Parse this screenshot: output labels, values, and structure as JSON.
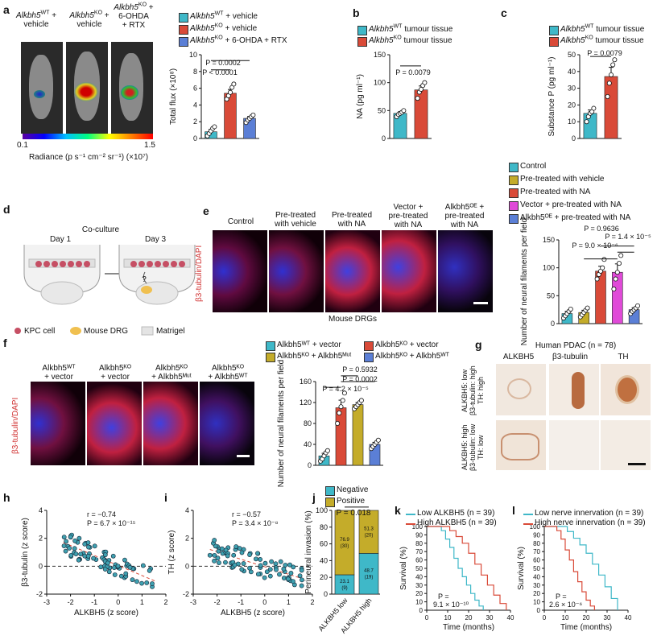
{
  "colors": {
    "wt": "#3fb8c8",
    "ko": "#d94a38",
    "rtx": "#5b7fd6",
    "olive": "#c4ac2a",
    "magenta": "#e04ad8",
    "neg": "#3fb8c8",
    "pos": "#c4ac2a",
    "low": "#3fb8c8",
    "high": "#d94a38"
  },
  "panel_a": {
    "label": "a",
    "img_labels": [
      {
        "gene": "Alkbh5",
        "sup": "WT",
        "text": " +",
        "line2": "vehicle"
      },
      {
        "gene": "Alkbh5",
        "sup": "KO",
        "text": " +",
        "line2": "vehicle"
      },
      {
        "gene": "Alkbh5",
        "sup": "KO",
        "text": " +",
        "line2": "6-OHDA",
        "line3": "+ RTX"
      }
    ],
    "colorbar_min": "0.1",
    "colorbar_max": "1.5",
    "colorbar_title": "Radiance (p s⁻¹ cm⁻² sr⁻¹) (×10⁷)",
    "legend": [
      {
        "gene": "Alkbh5",
        "sup": "WT",
        "text": " + vehicle"
      },
      {
        "gene": "Alkbh5",
        "sup": "KO",
        "text": " + vehicle"
      },
      {
        "gene": "Alkbh5",
        "sup": "KO",
        "text": " + 6-OHDA + RTX"
      }
    ],
    "p1": "P = 0.0002",
    "p2": "P < 0.0001"
  },
  "panel_b": {
    "label": "b",
    "legend": [
      {
        "gene": "Alkbh5",
        "sup": "WT",
        "text": " tumour tissue"
      },
      {
        "gene": "Alkbh5",
        "sup": "KO",
        "text": " tumour tissue"
      }
    ],
    "p": "P = 0.0079"
  },
  "panel_c": {
    "label": "c",
    "legend": [
      {
        "gene": "Alkbh5",
        "sup": "WT",
        "text": " tumour tissue"
      },
      {
        "gene": "Alkbh5",
        "sup": "KO",
        "text": " tumour tissue"
      }
    ],
    "p": "P = 0.0079"
  },
  "panel_d": {
    "label": "d",
    "coculture": "Co-culture",
    "day1": "Day 1",
    "day3": "Day 3",
    "q": "?",
    "legend": [
      "KPC cell",
      "Mouse DRG",
      "Matrigel"
    ]
  },
  "panel_e": {
    "label": "e",
    "cols": [
      "Control",
      "Pre-treated\nwith vehicle",
      "Pre-treated\nwith NA",
      "Vector +\npre-treated\nwith NA",
      "Alkbh5ᴼᴱ +\npre-treated\nwith NA"
    ],
    "ylabel": "β3-tubulin/DAPI",
    "xlabel": "Mouse DRGs",
    "legend": [
      "Control",
      "Pre-treated with vehicle",
      "Pre-treated with NA",
      "Vector + pre-treated with NA",
      "Alkbh5ᴼᴱ + pre-treated with NA"
    ],
    "p1": "P = 0.9636",
    "p2": "P = 1.4 × 10⁻⁵",
    "p3": "P = 9.0 × 10⁻⁶"
  },
  "panel_f": {
    "label": "f",
    "cols": [
      "Alkbh5ᵂᵀ\n+ vector",
      "Alkbh5ᴷᴼ\n+ vector",
      "Alkbh5ᴷᴼ\n+ Alkbh5ᴹᵘᵗ",
      "Alkbh5ᴷᴼ\n+ Alkbh5ᵂᵀ"
    ],
    "ylabel": "β3-tubulin/DAPI",
    "legend": [
      "Alkbh5ᵂᵀ + vector",
      "Alkbh5ᴷᴼ + vector",
      "Alkbh5ᴷᴼ + Alkbh5ᴹᵘᵗ",
      "Alkbh5ᴷᴼ + Alkbh5ᵂᵀ"
    ],
    "p1": "P = 0.5932",
    "p2": "P = 0.0002",
    "p3": "P = 4.2 × 10⁻⁵"
  },
  "panel_g": {
    "label": "g",
    "title": "Human PDAC (n = 78)",
    "cols": [
      "ALKBH5",
      "β3-tubulin",
      "TH"
    ],
    "row1": "ALKBH5: low\nβ3-tubulin: high\nTH: high",
    "row2": "ALKBH5: high\nβ3-tubulin: low\nTH: low"
  },
  "panel_h": {
    "label": "h",
    "r": "r = −0.74",
    "p": "P = 6.7 × 10⁻¹⁵"
  },
  "panel_i": {
    "label": "i",
    "r": "r = −0.57",
    "p": "P = 3.4 × 10⁻⁸"
  },
  "panel_j": {
    "label": "j",
    "legend": [
      "Negative",
      "Positive"
    ],
    "p": "P = 0.018"
  },
  "panel_k": {
    "label": "k",
    "legend": [
      "Low ALKBH5 (n = 39)",
      "High ALKBH5 (n = 39)"
    ],
    "p1": "P =",
    "p2": "9.1 × 10⁻¹⁰"
  },
  "panel_l": {
    "label": "l",
    "legend": [
      "Low nerve innervation (n = 39)",
      "High nerve innervation (n = 39)"
    ],
    "p1": "P =",
    "p2": "2.6 × 10⁻⁶"
  },
  "chart_data": [
    {
      "id": "a",
      "type": "bar",
      "categories": [
        "WT + vehicle",
        "KO + vehicle",
        "KO + 6-OHDA + RTX"
      ],
      "values": [
        0.8,
        5.4,
        2.4
      ],
      "points": [
        [
          0.3,
          0.6,
          0.9,
          1.2,
          1.4
        ],
        [
          4.7,
          5.1,
          5.5,
          6.1,
          6.5
        ],
        [
          1.9,
          2.2,
          2.4,
          2.6,
          2.8
        ]
      ],
      "ylabel": "Total flux (×10⁸)",
      "ylim": [
        0,
        10
      ],
      "yticks": [
        0,
        2,
        4,
        6,
        8,
        10
      ]
    },
    {
      "id": "b",
      "type": "bar",
      "categories": [
        "WT",
        "KO"
      ],
      "values": [
        45,
        87
      ],
      "points": [
        [
          39,
          43,
          45,
          47,
          50
        ],
        [
          72,
          83,
          88,
          95,
          100
        ]
      ],
      "ylabel": "NA (pg ml⁻¹)",
      "ylim": [
        0,
        150
      ],
      "yticks": [
        0,
        50,
        100,
        150
      ]
    },
    {
      "id": "c",
      "type": "bar",
      "categories": [
        "WT",
        "KO"
      ],
      "values": [
        15,
        37
      ],
      "points": [
        [
          10,
          13,
          15,
          16,
          18
        ],
        [
          25,
          33,
          38,
          44,
          47
        ]
      ],
      "ylabel": "Substance P (pg ml⁻¹)",
      "ylim": [
        0,
        50
      ],
      "yticks": [
        0,
        10,
        20,
        30,
        40,
        50
      ]
    },
    {
      "id": "e",
      "type": "bar",
      "categories": [
        "Control",
        "Pre-treated with vehicle",
        "Pre-treated with NA",
        "Vector + pre-treated with NA",
        "Alkbh5 OE + pre-treated with NA"
      ],
      "values": [
        18,
        20,
        94,
        92,
        25
      ],
      "points": [
        [
          10,
          14,
          18,
          22,
          26
        ],
        [
          12,
          16,
          20,
          24,
          28
        ],
        [
          80,
          88,
          94,
          100,
          115
        ],
        [
          62,
          80,
          92,
          108,
          122
        ],
        [
          18,
          22,
          25,
          28,
          32
        ]
      ],
      "ylabel": "Number of neural filaments per field",
      "ylim": [
        0,
        150
      ],
      "yticks": [
        0,
        50,
        100,
        150
      ]
    },
    {
      "id": "f",
      "type": "bar",
      "categories": [
        "WT + vector",
        "KO + vector",
        "KO + Mut",
        "KO + WT"
      ],
      "values": [
        18,
        110,
        116,
        40
      ],
      "points": [
        [
          8,
          12,
          18,
          24,
          28
        ],
        [
          80,
          100,
          112,
          124,
          138
        ],
        [
          108,
          112,
          116,
          120,
          124
        ],
        [
          32,
          36,
          40,
          44,
          48
        ]
      ],
      "ylabel": "Number of neural filaments per field",
      "ylim": [
        0,
        160
      ],
      "yticks": [
        0,
        40,
        80,
        120,
        160
      ]
    },
    {
      "id": "h",
      "type": "scatter",
      "xlabel": "ALKBH5 (z score)",
      "ylabel": "β3-tubulin (z score)",
      "xlim": [
        -3,
        2
      ],
      "ylim": [
        -2,
        4
      ],
      "xticks": [
        -3,
        -2,
        -1,
        0,
        1,
        2
      ],
      "yticks": [
        -2,
        0,
        2,
        4
      ],
      "fit": [
        [
          -2.3,
          1.7
        ],
        [
          1.6,
          -1.1
        ]
      ]
    },
    {
      "id": "i",
      "type": "scatter",
      "xlabel": "ALKBH5 (z score)",
      "ylabel": "TH (z score)",
      "xlim": [
        -3,
        2
      ],
      "ylim": [
        -2,
        4
      ],
      "xticks": [
        -3,
        -2,
        -1,
        0,
        1,
        2
      ],
      "yticks": [
        -2,
        0,
        2,
        4
      ],
      "fit": [
        [
          -2.3,
          1.2
        ],
        [
          1.6,
          -0.9
        ]
      ]
    },
    {
      "id": "j",
      "type": "bar",
      "categories": [
        "ALKBH5 low",
        "ALKBH5 high"
      ],
      "series": [
        {
          "name": "Negative",
          "values": [
            23.1,
            48.7
          ],
          "labels": [
            "23.1\n(9)",
            "48.7\n(19)"
          ]
        },
        {
          "name": "Positive",
          "values": [
            76.9,
            51.3
          ],
          "labels": [
            "76.9\n(30)",
            "51.3\n(20)"
          ]
        }
      ],
      "ylabel": "Perineural invasion (%)",
      "ylim": [
        0,
        100
      ],
      "yticks": [
        0,
        20,
        40,
        60,
        80,
        100
      ]
    },
    {
      "id": "k",
      "type": "line",
      "xlabel": "Time (months)",
      "ylabel": "Survival (%)",
      "xlim": [
        0,
        40
      ],
      "ylim": [
        0,
        100
      ],
      "xticks": [
        0,
        10,
        20,
        30,
        40
      ],
      "yticks": [
        0,
        10,
        20,
        30,
        40,
        50,
        60,
        70,
        80,
        90,
        100
      ],
      "series": [
        {
          "name": "Low ALKBH5",
          "x": [
            0,
            4,
            7,
            9,
            11,
            13,
            15,
            17,
            19,
            21,
            23,
            25,
            27
          ],
          "y": [
            100,
            100,
            95,
            85,
            75,
            62,
            50,
            40,
            30,
            20,
            12,
            5,
            0
          ]
        },
        {
          "name": "High ALKBH5",
          "x": [
            0,
            8,
            11,
            14,
            17,
            20,
            23,
            26,
            29,
            32,
            35,
            38
          ],
          "y": [
            100,
            100,
            95,
            88,
            80,
            68,
            55,
            42,
            30,
            18,
            8,
            0
          ]
        }
      ]
    },
    {
      "id": "l",
      "type": "line",
      "xlabel": "Time (months)",
      "ylabel": "Survival (%)",
      "xlim": [
        0,
        40
      ],
      "ylim": [
        0,
        100
      ],
      "xticks": [
        0,
        10,
        20,
        30,
        40
      ],
      "yticks": [
        0,
        10,
        20,
        30,
        40,
        50,
        60,
        70,
        80,
        90,
        100
      ],
      "series": [
        {
          "name": "Low nerve innervation",
          "x": [
            0,
            8,
            11,
            14,
            17,
            20,
            23,
            26,
            29,
            32,
            35
          ],
          "y": [
            100,
            100,
            94,
            86,
            78,
            68,
            55,
            42,
            28,
            14,
            0
          ]
        },
        {
          "name": "High nerve innervation",
          "x": [
            0,
            3,
            6,
            8,
            10,
            12,
            14,
            16,
            18,
            20,
            22,
            24
          ],
          "y": [
            100,
            100,
            95,
            85,
            72,
            60,
            46,
            34,
            22,
            12,
            5,
            0
          ]
        }
      ]
    }
  ]
}
